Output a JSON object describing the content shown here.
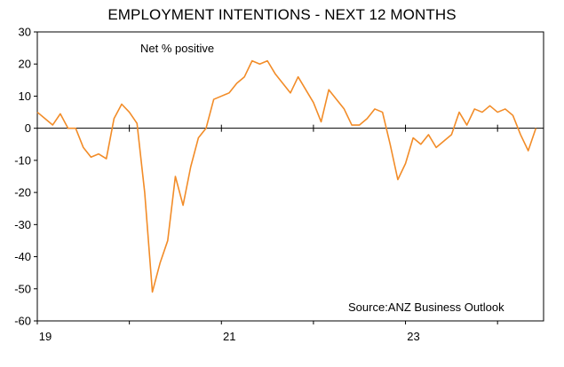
{
  "chart_data": {
    "type": "line",
    "title": "EMPLOYMENT INTENTIONS - NEXT 12 MONTHS",
    "ylabel": "Net % positive",
    "source": "Source:ANZ Business Outlook",
    "ylim": [
      -60,
      30
    ],
    "yticks": [
      "30",
      "20",
      "10",
      "0",
      "-10",
      "-20",
      "-30",
      "-40",
      "-50",
      "-60"
    ],
    "xlim": [
      0,
      66
    ],
    "xticks": [
      {
        "pos": 0,
        "label": "19"
      },
      {
        "pos": 12,
        "label": ""
      },
      {
        "pos": 24,
        "label": "21"
      },
      {
        "pos": 36,
        "label": ""
      },
      {
        "pos": 48,
        "label": "23"
      },
      {
        "pos": 60,
        "label": ""
      }
    ],
    "grid": false,
    "series": [
      {
        "color": "#f28c28",
        "x": [
          0,
          1,
          2,
          3,
          4,
          5,
          6,
          7,
          8,
          9,
          10,
          11,
          12,
          13,
          14,
          15,
          16,
          17,
          18,
          19,
          20,
          21,
          22,
          23,
          24,
          25,
          26,
          27,
          28,
          29,
          30,
          31,
          32,
          33,
          34,
          35,
          36,
          37,
          38,
          39,
          40,
          41,
          42,
          43,
          44,
          45,
          46,
          47,
          48,
          49,
          50,
          51,
          52,
          53,
          54,
          55,
          56,
          57,
          58,
          59,
          60,
          61,
          62,
          63,
          64,
          65
        ],
        "y": [
          5,
          3,
          1,
          4.5,
          0,
          0,
          -6,
          -9,
          -8,
          -9.5,
          3,
          7.5,
          5,
          1.5,
          -20,
          -51,
          -42,
          -35,
          -15,
          -24,
          -12,
          -3,
          0,
          9,
          10,
          11,
          14,
          16,
          21,
          20,
          21,
          17,
          14,
          11,
          16,
          12,
          8,
          2,
          12,
          9,
          6,
          1,
          1,
          3,
          6,
          5,
          -5,
          -16,
          -11,
          -3,
          -5,
          -2,
          -6,
          -4,
          -2,
          5,
          1,
          6,
          5,
          7,
          5,
          6,
          4,
          -2,
          -7,
          0
        ]
      }
    ]
  }
}
